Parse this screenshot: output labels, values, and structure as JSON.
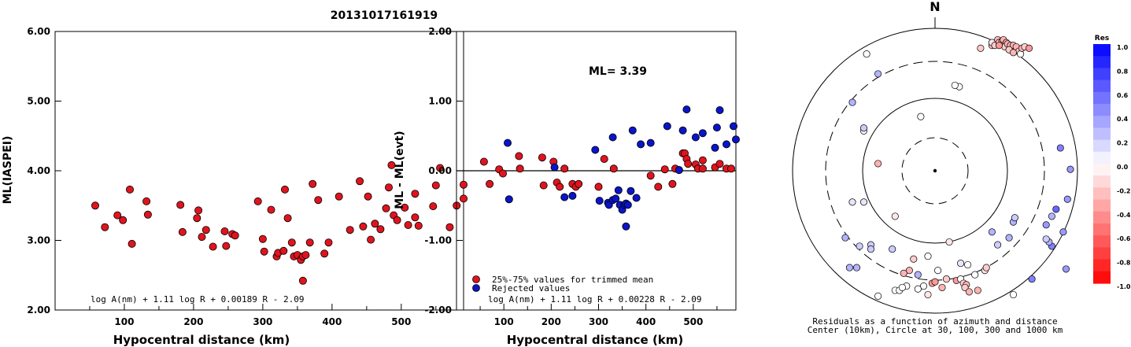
{
  "title": "20131017161919",
  "chart_data": [
    {
      "type": "scatter",
      "xlabel": "Hypocentral distance (km)",
      "ylabel": "ML(IASPEI)",
      "xlim": [
        0,
        590
      ],
      "ylim": [
        2.0,
        6.0
      ],
      "xticks": [
        "100",
        "200",
        "300",
        "400",
        "500"
      ],
      "yticks": [
        "2.00",
        "3.00",
        "4.00",
        "5.00",
        "6.00"
      ],
      "formula": "log A(nm) + 1.11 log R + 0.00189 R - 2.09",
      "series": [
        {
          "color": "#e0141e",
          "points": [
            [
              58,
              3.5
            ],
            [
              72,
              3.19
            ],
            [
              90,
              3.36
            ],
            [
              98,
              3.29
            ],
            [
              108,
              3.73
            ],
            [
              111,
              2.95
            ],
            [
              132,
              3.56
            ],
            [
              134,
              3.37
            ],
            [
              181,
              3.51
            ],
            [
              184,
              3.12
            ],
            [
              205,
              3.32
            ],
            [
              207,
              3.43
            ],
            [
              212,
              3.05
            ],
            [
              218,
              3.15
            ],
            [
              228,
              2.91
            ],
            [
              245,
              3.13
            ],
            [
              247,
              2.92
            ],
            [
              256,
              3.09
            ],
            [
              260,
              3.07
            ],
            [
              293,
              3.56
            ],
            [
              300,
              3.02
            ],
            [
              302,
              2.84
            ],
            [
              312,
              3.44
            ],
            [
              320,
              2.77
            ],
            [
              322,
              2.82
            ],
            [
              330,
              2.85
            ],
            [
              332,
              3.73
            ],
            [
              336,
              3.32
            ],
            [
              342,
              2.97
            ],
            [
              345,
              2.77
            ],
            [
              350,
              2.79
            ],
            [
              355,
              2.72
            ],
            [
              358,
              2.77
            ],
            [
              358,
              2.42
            ],
            [
              362,
              2.79
            ],
            [
              368,
              2.97
            ],
            [
              372,
              3.81
            ],
            [
              380,
              3.58
            ],
            [
              389,
              2.81
            ],
            [
              395,
              2.97
            ],
            [
              410,
              3.63
            ],
            [
              426,
              3.15
            ],
            [
              440,
              3.85
            ],
            [
              445,
              3.2
            ],
            [
              452,
              3.63
            ],
            [
              456,
              3.01
            ],
            [
              462,
              3.24
            ],
            [
              470,
              3.16
            ],
            [
              478,
              3.46
            ],
            [
              482,
              3.76
            ],
            [
              486,
              4.08
            ],
            [
              489,
              3.36
            ],
            [
              494,
              3.29
            ],
            [
              505,
              3.47
            ],
            [
              510,
              3.22
            ],
            [
              520,
              3.67
            ],
            [
              520,
              3.33
            ],
            [
              525,
              3.21
            ],
            [
              546,
              3.49
            ],
            [
              550,
              3.79
            ],
            [
              556,
              4.04
            ],
            [
              570,
              3.19
            ],
            [
              580,
              3.5
            ],
            [
              590,
              3.8
            ],
            [
              590,
              3.6
            ]
          ]
        }
      ]
    },
    {
      "type": "scatter",
      "xlabel": "Hypocentral distance (km)",
      "ylabel": "ML - ML(evt)",
      "xlim": [
        0,
        590
      ],
      "ylim": [
        -2.0,
        2.0
      ],
      "xticks": [
        "100",
        "200",
        "300",
        "400",
        "500"
      ],
      "yticks": [
        "-2.00",
        "-1.00",
        "0.00",
        "1.00",
        "2.00"
      ],
      "annotation": "ML= 3.39",
      "formula": "log A(nm) + 1.11 log R + 0.00228 R - 2.09",
      "series": [
        {
          "name": "25%-75% values for trimmed mean",
          "color": "#e0141e",
          "points": [
            [
              58,
              0.13
            ],
            [
              70,
              -0.19
            ],
            [
              90,
              0.02
            ],
            [
              98,
              -0.04
            ],
            [
              132,
              0.21
            ],
            [
              134,
              0.03
            ],
            [
              181,
              0.19
            ],
            [
              184,
              -0.21
            ],
            [
              205,
              0.13
            ],
            [
              212,
              -0.17
            ],
            [
              218,
              -0.23
            ],
            [
              228,
              0.03
            ],
            [
              245,
              -0.19
            ],
            [
              252,
              -0.23
            ],
            [
              258,
              -0.19
            ],
            [
              300,
              -0.23
            ],
            [
              312,
              0.17
            ],
            [
              332,
              0.03
            ],
            [
              410,
              -0.07
            ],
            [
              426,
              -0.23
            ],
            [
              440,
              0.02
            ],
            [
              456,
              -0.19
            ],
            [
              462,
              0.03
            ],
            [
              470,
              0.01
            ],
            [
              478,
              0.25
            ],
            [
              482,
              0.25
            ],
            [
              486,
              0.17
            ],
            [
              489,
              0.1
            ],
            [
              505,
              0.09
            ],
            [
              510,
              0.03
            ],
            [
              520,
              0.15
            ],
            [
              520,
              0.03
            ],
            [
              546,
              0.05
            ],
            [
              556,
              0.1
            ],
            [
              570,
              0.03
            ],
            [
              580,
              0.03
            ]
          ]
        },
        {
          "name": "Rejected values",
          "color": "#0a14c8",
          "points": [
            [
              108,
              0.4
            ],
            [
              111,
              -0.41
            ],
            [
              207,
              0.05
            ],
            [
              228,
              -0.38
            ],
            [
              245,
              -0.36
            ],
            [
              293,
              0.3
            ],
            [
              302,
              -0.43
            ],
            [
              320,
              -0.46
            ],
            [
              322,
              -0.49
            ],
            [
              330,
              0.48
            ],
            [
              330,
              -0.42
            ],
            [
              336,
              -0.4
            ],
            [
              342,
              -0.28
            ],
            [
              345,
              -0.49
            ],
            [
              350,
              -0.56
            ],
            [
              355,
              -0.49
            ],
            [
              358,
              -0.47
            ],
            [
              358,
              -0.8
            ],
            [
              362,
              -0.49
            ],
            [
              368,
              -0.29
            ],
            [
              372,
              0.58
            ],
            [
              380,
              -0.39
            ],
            [
              389,
              0.38
            ],
            [
              410,
              0.4
            ],
            [
              445,
              0.64
            ],
            [
              470,
              0.01
            ],
            [
              478,
              0.58
            ],
            [
              486,
              0.88
            ],
            [
              505,
              0.48
            ],
            [
              520,
              0.54
            ],
            [
              546,
              0.33
            ],
            [
              550,
              0.62
            ],
            [
              556,
              0.87
            ],
            [
              570,
              0.38
            ],
            [
              585,
              0.64
            ],
            [
              590,
              0.45
            ]
          ]
        }
      ]
    },
    {
      "type": "scatter",
      "polar": true,
      "north_label": "N",
      "caption_line1": "Residuals as a function of azimuth and distance",
      "caption_line2": "Center (10km), Circle at 30, 100, 300 and 1000 km",
      "colorbar": {
        "title": "Res",
        "labels": [
          "1.0",
          "0.8",
          "0.6",
          "0.4",
          "0.2",
          "0.0",
          "-0.2",
          "-0.4",
          "-0.6",
          "-0.8",
          "-1.0"
        ]
      },
      "points": [
        [
          -0.4,
          -0.88,
          0.0
        ],
        [
          0.55,
          -0.87,
          0.0
        ],
        [
          -0.28,
          -0.84,
          0.0
        ],
        [
          -0.25,
          -0.84,
          0.0
        ],
        [
          -0.2,
          -0.81,
          0.0
        ],
        [
          -0.08,
          -0.81,
          0.0
        ],
        [
          -0.12,
          -0.83,
          0.0
        ],
        [
          -0.05,
          -0.87,
          -0.1
        ],
        [
          -0.02,
          -0.79,
          -0.4
        ],
        [
          0.0,
          -0.78,
          -0.4
        ],
        [
          0.05,
          -0.82,
          -0.3
        ],
        [
          0.08,
          -0.76,
          -0.2
        ],
        [
          0.15,
          -0.77,
          -0.4
        ],
        [
          0.18,
          -0.76,
          0.0
        ],
        [
          0.2,
          -0.79,
          -0.2
        ],
        [
          0.22,
          -0.8,
          -0.3
        ],
        [
          0.21,
          -0.82,
          -0.2
        ],
        [
          0.24,
          -0.85,
          -0.3
        ],
        [
          0.3,
          -0.84,
          -0.3
        ],
        [
          0.28,
          -0.73,
          0.0
        ],
        [
          0.35,
          -0.7,
          -0.1
        ],
        [
          0.36,
          -0.68,
          -0.2
        ],
        [
          -0.45,
          -0.52,
          0.2
        ],
        [
          -0.1,
          0.38,
          0.0
        ],
        [
          -0.6,
          -0.68,
          0.3
        ],
        [
          0.82,
          -0.53,
          0.5
        ],
        [
          0.68,
          -0.76,
          0.5
        ],
        [
          0.78,
          -0.38,
          0.4
        ],
        [
          0.92,
          -0.69,
          0.4
        ],
        [
          0.8,
          -0.5,
          0.3
        ],
        [
          0.82,
          -0.32,
          0.3
        ],
        [
          0.9,
          -0.43,
          0.4
        ],
        [
          0.78,
          -0.48,
          0.2
        ],
        [
          0.55,
          -0.36,
          0.3
        ],
        [
          0.52,
          -0.47,
          0.3
        ],
        [
          0.56,
          -0.33,
          0.2
        ],
        [
          0.4,
          -0.43,
          0.3
        ],
        [
          0.44,
          -0.52,
          0.2
        ],
        [
          -0.18,
          -0.7,
          -0.3
        ],
        [
          0.1,
          -0.5,
          -0.1
        ],
        [
          0.18,
          -0.65,
          0.1
        ],
        [
          0.23,
          -0.66,
          0.0
        ],
        [
          0.02,
          -0.7,
          0.0
        ],
        [
          -0.15,
          -0.62,
          -0.2
        ],
        [
          -0.5,
          -0.22,
          0.1
        ],
        [
          -0.58,
          -0.22,
          0.1
        ],
        [
          -0.5,
          0.28,
          0.0
        ],
        [
          -0.5,
          0.3,
          0.2
        ],
        [
          -0.4,
          0.05,
          -0.3
        ],
        [
          -0.28,
          -0.32,
          -0.1
        ],
        [
          -0.3,
          -0.55,
          0.2
        ],
        [
          -0.63,
          -0.47,
          0.3
        ],
        [
          -0.53,
          -0.53,
          0.2
        ],
        [
          -0.45,
          -0.55,
          0.2
        ],
        [
          -0.55,
          -0.68,
          0.3
        ],
        [
          -0.22,
          -0.72,
          -0.3
        ],
        [
          -0.23,
          -0.82,
          0.0
        ],
        [
          -0.12,
          -0.73,
          0.3
        ],
        [
          -0.05,
          -0.6,
          0.0
        ],
        [
          -0.4,
          0.68,
          0.3
        ],
        [
          -0.58,
          0.48,
          0.3
        ],
        [
          -0.48,
          0.82,
          0.0
        ],
        [
          0.32,
          0.86,
          -0.2
        ],
        [
          0.4,
          0.88,
          -0.2
        ],
        [
          0.4,
          0.9,
          -0.1
        ],
        [
          0.42,
          0.88,
          -0.2
        ],
        [
          0.44,
          0.92,
          -0.3
        ],
        [
          0.45,
          0.9,
          -0.2
        ],
        [
          0.47,
          0.91,
          -0.4
        ],
        [
          0.48,
          0.92,
          -0.3
        ],
        [
          0.5,
          0.9,
          -0.4
        ],
        [
          0.49,
          0.87,
          -0.2
        ],
        [
          0.51,
          0.89,
          -0.3
        ],
        [
          0.53,
          0.88,
          -0.3
        ],
        [
          0.55,
          0.88,
          -0.3
        ],
        [
          0.57,
          0.87,
          -0.3
        ],
        [
          0.59,
          0.84,
          -0.2
        ],
        [
          0.6,
          0.82,
          0.0
        ],
        [
          0.61,
          0.86,
          -0.3
        ],
        [
          0.63,
          0.87,
          -0.2
        ],
        [
          0.66,
          0.86,
          -0.4
        ],
        [
          0.52,
          0.85,
          -0.2
        ],
        [
          0.55,
          0.83,
          -0.3
        ],
        [
          0.45,
          0.88,
          -0.4
        ],
        [
          0.17,
          0.59,
          0.0
        ],
        [
          0.14,
          0.6,
          0.0
        ],
        [
          0.88,
          0.16,
          0.5
        ],
        [
          0.95,
          0.01,
          0.4
        ],
        [
          0.93,
          -0.2,
          0.4
        ],
        [
          0.85,
          -0.27,
          0.6
        ]
      ]
    }
  ]
}
